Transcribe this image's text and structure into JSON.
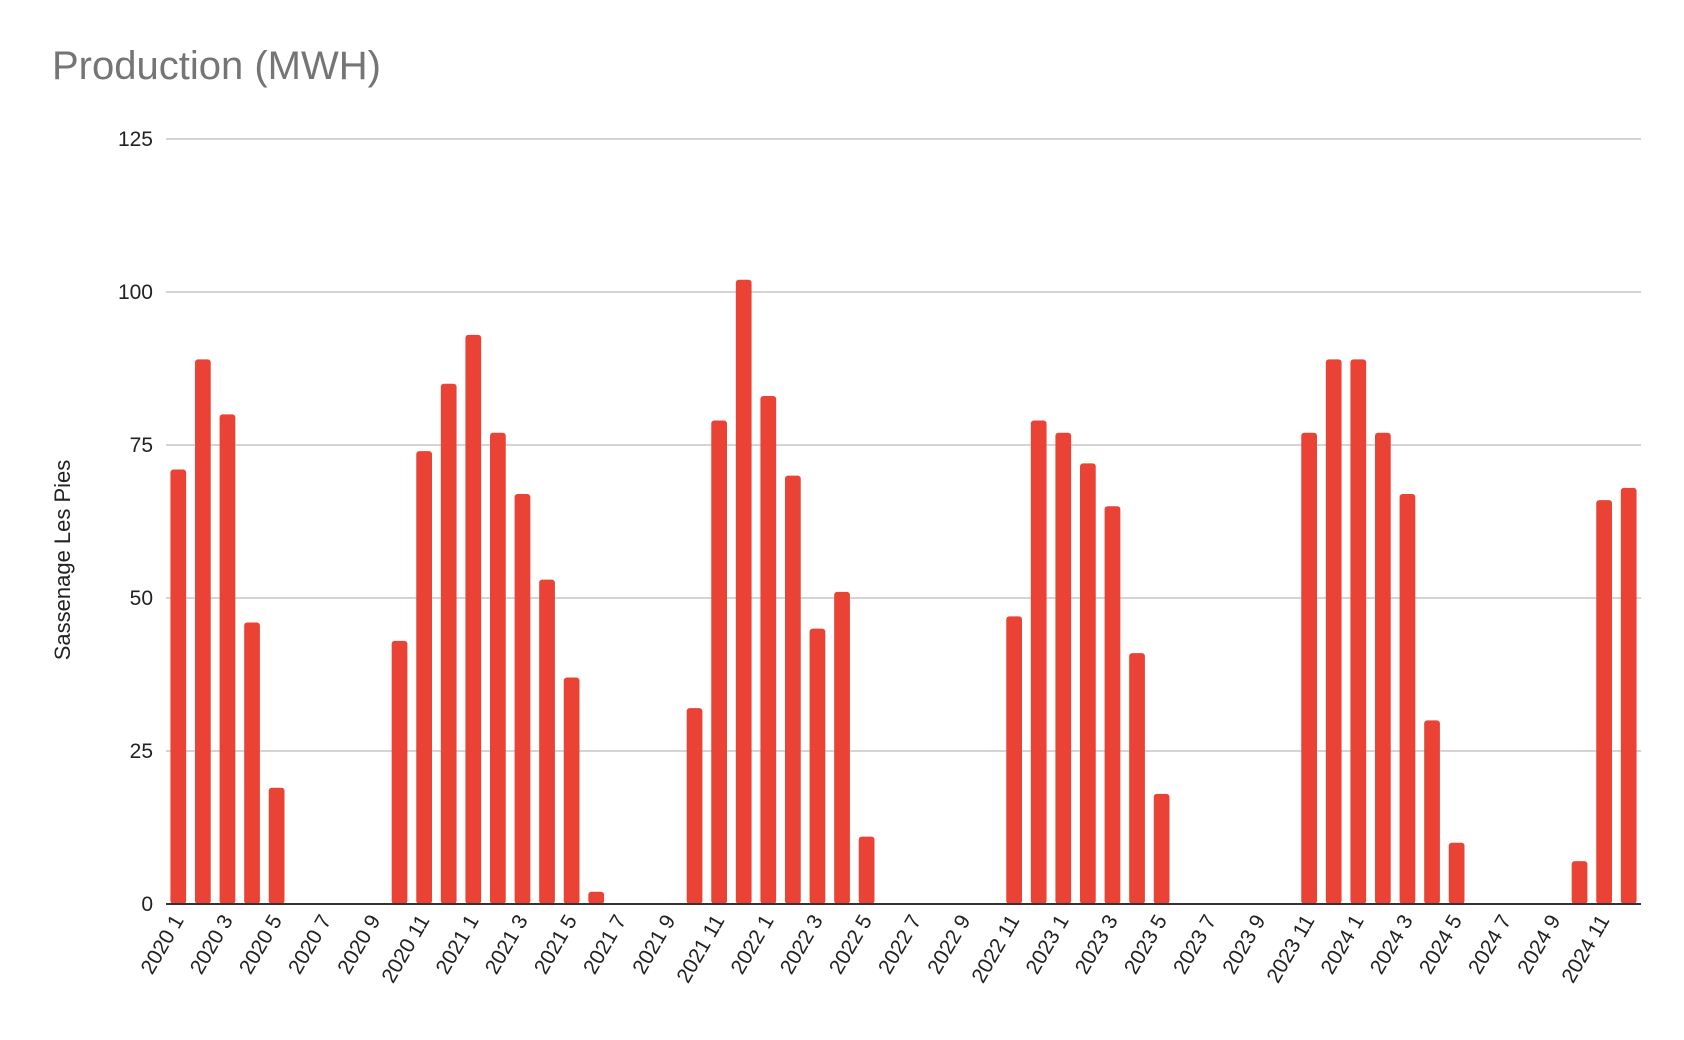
{
  "chart_data": {
    "type": "bar",
    "title": "Production (MWH)",
    "xlabel": "",
    "ylabel": "Sassenage Les Pies",
    "ylim": [
      0,
      125
    ],
    "yticks": [
      0,
      25,
      50,
      75,
      100,
      125
    ],
    "grid": true,
    "legend": "none",
    "bar_color": "#ea4335",
    "categories": [
      "2020 1",
      "2020 2",
      "2020 3",
      "2020 4",
      "2020 5",
      "2020 6",
      "2020 7",
      "2020 8",
      "2020 9",
      "2020 10",
      "2020 11",
      "2020 12",
      "2021 1",
      "2021 2",
      "2021 3",
      "2021 4",
      "2021 5",
      "2021 6",
      "2021 7",
      "2021 8",
      "2021 9",
      "2021 10",
      "2021 11",
      "2021 12",
      "2022 1",
      "2022 2",
      "2022 3",
      "2022 4",
      "2022 5",
      "2022 6",
      "2022 7",
      "2022 8",
      "2022 9",
      "2022 10",
      "2022 11",
      "2022 12",
      "2023 1",
      "2023 2",
      "2023 3",
      "2023 4",
      "2023 5",
      "2023 6",
      "2023 7",
      "2023 8",
      "2023 9",
      "2023 10",
      "2023 11",
      "2023 12",
      "2024 1",
      "2024 2",
      "2024 3",
      "2024 4",
      "2024 5",
      "2024 6",
      "2024 7",
      "2024 8",
      "2024 9",
      "2024 10",
      "2024 11",
      "2024 12"
    ],
    "visible_tick_labels": [
      "2020 1",
      "2020 3",
      "2020 5",
      "2020 7",
      "2020 9",
      "2020 11",
      "2021 1",
      "2021 3",
      "2021 5",
      "2021 7",
      "2021 9",
      "2021 11",
      "2022 1",
      "2022 3",
      "2022 5",
      "2022 7",
      "2022 9",
      "2022 11",
      "2023 1",
      "2023 3",
      "2023 5",
      "2023 7",
      "2023 9",
      "2023 11",
      "2024 1",
      "2024 3",
      "2024 5",
      "2024 7",
      "2024 9",
      "2024 11"
    ],
    "values": [
      71,
      89,
      80,
      46,
      19,
      0,
      0,
      0,
      0,
      43,
      74,
      85,
      93,
      77,
      67,
      53,
      37,
      2,
      0,
      0,
      0,
      32,
      79,
      102,
      83,
      70,
      45,
      51,
      11,
      0,
      0,
      0,
      0,
      0,
      47,
      79,
      77,
      72,
      65,
      41,
      18,
      0,
      0,
      0,
      0,
      0,
      77,
      89,
      89,
      77,
      67,
      30,
      10,
      0,
      0,
      0,
      0,
      7,
      66,
      68
    ]
  }
}
